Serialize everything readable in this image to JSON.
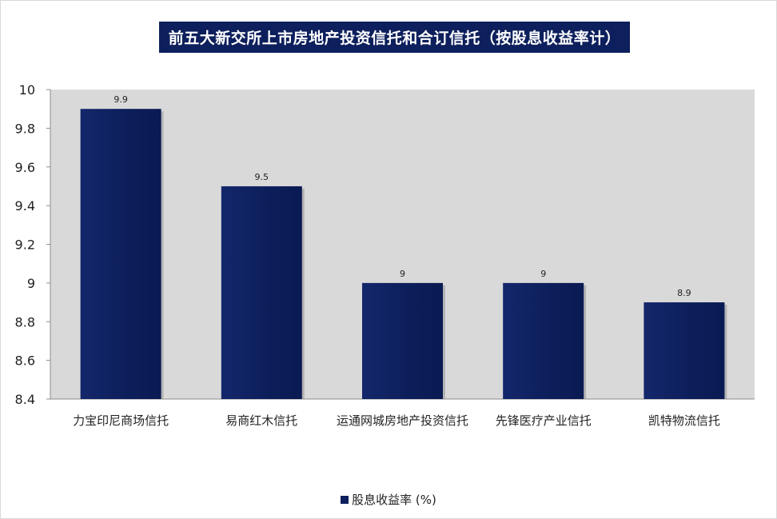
{
  "colors": {
    "bar": "#0d1f5c",
    "plot_bg": "#d9d9d9",
    "title_bg": "#0d1f5c"
  },
  "chart_data": {
    "type": "bar",
    "title": "前五大新交所上市房地产投资信托和合订信托（按股息收益率计）",
    "categories": [
      "力宝印尼商场信托",
      "易商红木信托",
      "运通网城房地产投资信托",
      "先锋医疗产业信托",
      "凯特物流信托"
    ],
    "series": [
      {
        "name": "股息收益率 (%)",
        "values": [
          9.9,
          9.5,
          9,
          9,
          8.9
        ]
      }
    ],
    "data_labels": [
      "9.9",
      "9.5",
      "9",
      "9",
      "8.9"
    ],
    "yticks": [
      "10",
      "9.8",
      "9.6",
      "9.4",
      "9.2",
      "9",
      "8.8",
      "8.6",
      "8.4"
    ],
    "ylim": [
      8.4,
      10
    ],
    "xlabel": "",
    "ylabel": "",
    "legend": "bottom",
    "grid": false
  }
}
